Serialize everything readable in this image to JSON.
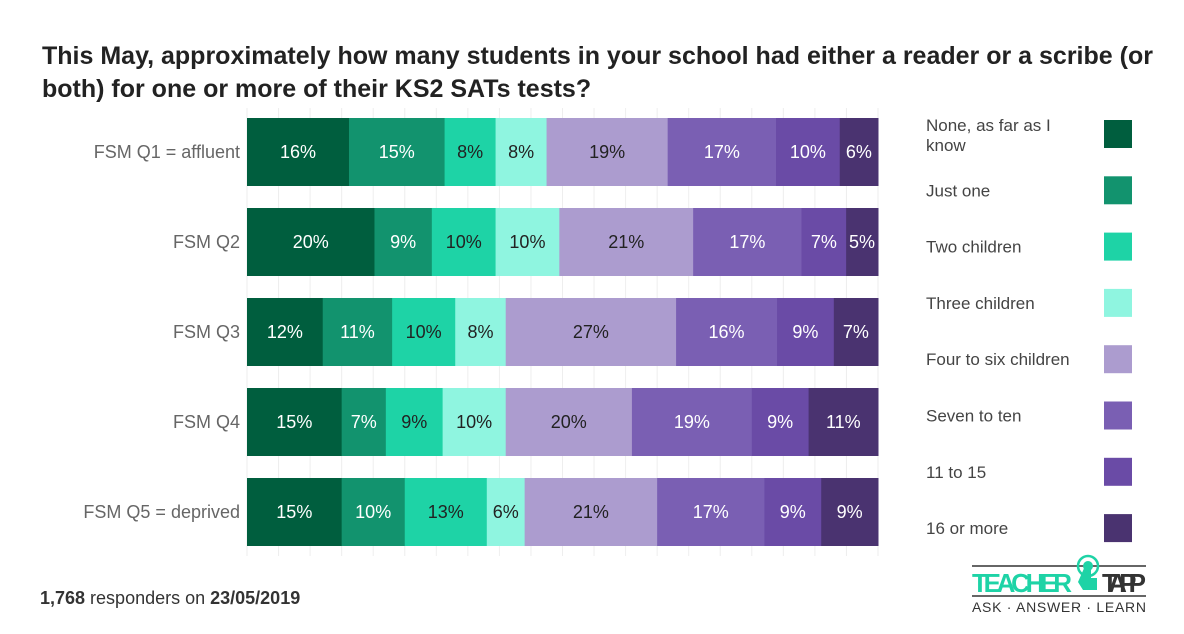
{
  "chart_data": {
    "type": "bar",
    "orientation": "horizontal-stacked-100",
    "title": "This May, approximately how many students in your school had either a reader or a scribe (or both) for one or more of their KS2 SATs tests?",
    "categories": [
      "FSM Q1 = affluent",
      "FSM Q2",
      "FSM Q3",
      "FSM Q4",
      "FSM Q5 = deprived"
    ],
    "series": [
      {
        "name": "None, as far as I know",
        "color": "#005e3e",
        "text_color": "#ffffff",
        "values": [
          16,
          20,
          12,
          15,
          15
        ]
      },
      {
        "name": "Just one",
        "color": "#12936e",
        "text_color": "#ffffff",
        "values": [
          15,
          9,
          11,
          7,
          10
        ]
      },
      {
        "name": "Two children",
        "color": "#1ed3a6",
        "text_color": "#222222",
        "values": [
          8,
          10,
          10,
          9,
          13
        ]
      },
      {
        "name": "Three children",
        "color": "#8ff5e0",
        "text_color": "#222222",
        "values": [
          8,
          10,
          8,
          10,
          6
        ]
      },
      {
        "name": "Four to six children",
        "color": "#ac9ccf",
        "text_color": "#222222",
        "values": [
          19,
          21,
          27,
          20,
          21
        ]
      },
      {
        "name": "Seven to ten",
        "color": "#7a5fb3",
        "text_color": "#ffffff",
        "values": [
          17,
          17,
          16,
          19,
          17
        ]
      },
      {
        "name": "11 to 15",
        "color": "#6a4ba6",
        "text_color": "#ffffff",
        "values": [
          10,
          7,
          9,
          9,
          9
        ]
      },
      {
        "name": "16 or more",
        "color": "#4a3370",
        "text_color": "#ffffff",
        "values": [
          6,
          5,
          7,
          11,
          9
        ]
      }
    ],
    "value_suffix": "%",
    "legend_placement": "right",
    "grid": true
  },
  "footer": {
    "count": "1,768",
    "middle": " responders on ",
    "date": "23/05/2019"
  },
  "logo": {
    "text_left": "TEACHER",
    "text_right": "TAPP",
    "tagline": "ASK · ANSWER · LEARN"
  }
}
